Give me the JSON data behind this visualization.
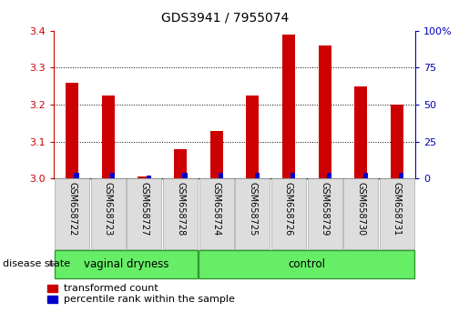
{
  "title": "GDS3941 / 7955074",
  "samples": [
    "GSM658722",
    "GSM658723",
    "GSM658727",
    "GSM658728",
    "GSM658724",
    "GSM658725",
    "GSM658726",
    "GSM658729",
    "GSM658730",
    "GSM658731"
  ],
  "red_values": [
    3.26,
    3.225,
    3.005,
    3.08,
    3.13,
    3.225,
    3.39,
    3.36,
    3.25,
    3.2
  ],
  "blue_values_pct": [
    4,
    4,
    2,
    4,
    4,
    4,
    4,
    4,
    4,
    4
  ],
  "ylim_left": [
    3.0,
    3.4
  ],
  "ylim_right": [
    0,
    100
  ],
  "yticks_left": [
    3.0,
    3.1,
    3.2,
    3.3,
    3.4
  ],
  "yticks_right": [
    0,
    25,
    50,
    75,
    100
  ],
  "ytick_labels_right": [
    "0",
    "25",
    "50",
    "75",
    "100%"
  ],
  "groups": [
    {
      "label": "vaginal dryness",
      "start": 0,
      "end": 4
    },
    {
      "label": "control",
      "start": 4,
      "end": 10
    }
  ],
  "group_label": "disease state",
  "legend_red": "transformed count",
  "legend_blue": "percentile rank within the sample",
  "red_color": "#CC0000",
  "blue_color": "#0000CC",
  "tick_color_left": "#CC0000",
  "tick_color_right": "#0000BB",
  "group_color": "#66EE66",
  "group_border_color": "#339933",
  "sample_box_color": "#DDDDDD",
  "sample_box_border": "#AAAAAA"
}
